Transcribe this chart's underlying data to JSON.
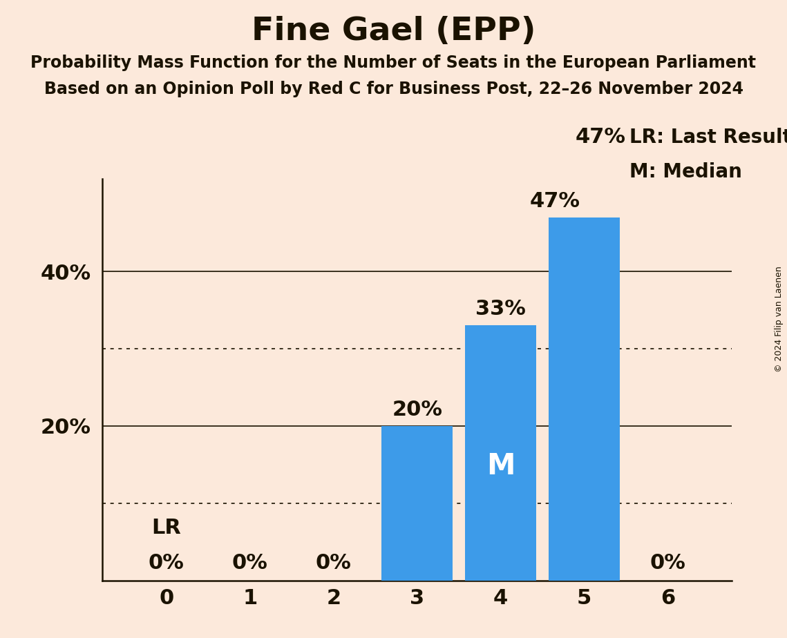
{
  "title": "Fine Gael (EPP)",
  "subtitle1": "Probability Mass Function for the Number of Seats in the European Parliament",
  "subtitle2": "Based on an Opinion Poll by Red C for Business Post, 22–26 November 2024",
  "copyright": "© 2024 Filip van Laenen",
  "categories": [
    0,
    1,
    2,
    3,
    4,
    5,
    6
  ],
  "values": [
    0,
    0,
    0,
    20,
    33,
    47,
    0
  ],
  "bar_color": "#3d9be9",
  "background_color": "#fce9db",
  "text_color": "#1a1200",
  "ylim": [
    0,
    52
  ],
  "solid_gridlines": [
    20,
    40
  ],
  "dotted_gridlines": [
    10,
    30
  ],
  "median_seat": 4,
  "last_result_seat": 0,
  "title_fontsize": 34,
  "subtitle_fontsize": 17,
  "label_fontsize": 22,
  "axis_tick_fontsize": 22,
  "legend_fontsize": 20,
  "m_fontsize": 30,
  "copyright_fontsize": 9
}
